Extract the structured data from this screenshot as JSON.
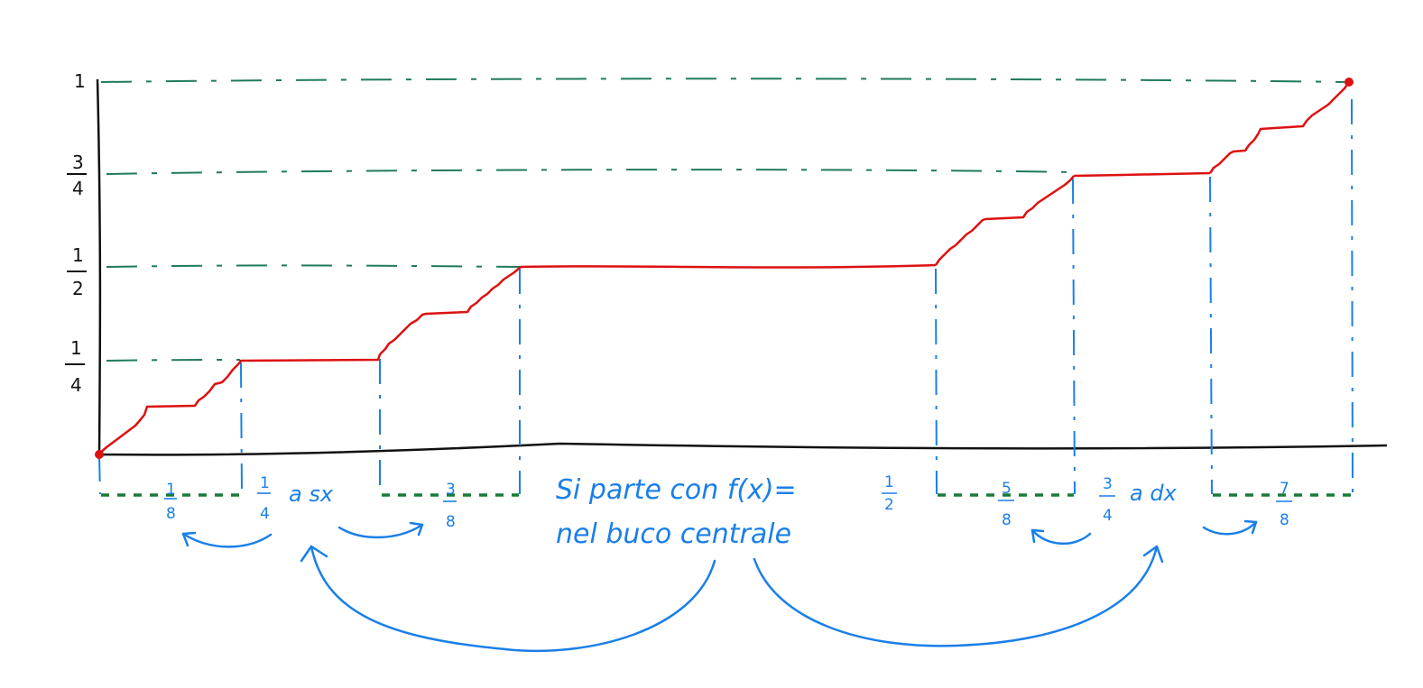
{
  "colors": {
    "axis": "#111111",
    "curve": "#dd1111",
    "guide_green": "#1f7a5c",
    "dotted_green": "#1a7a3a",
    "annotation_blue": "#1a7fe8"
  },
  "y_labels": [
    {
      "num": "1",
      "den": ""
    },
    {
      "num": "3",
      "den": "4"
    },
    {
      "num": "1",
      "den": "2"
    },
    {
      "num": "1",
      "den": "4"
    }
  ],
  "interval_labels": [
    {
      "num": "1",
      "den": "8",
      "suffix": ""
    },
    {
      "num": "1",
      "den": "4",
      "suffix": "a sx"
    },
    {
      "num": "3",
      "den": "8",
      "suffix": ""
    },
    {
      "num": "5",
      "den": "8",
      "suffix": ""
    },
    {
      "num": "3",
      "den": "4",
      "suffix": "a dx"
    },
    {
      "num": "7",
      "den": "8",
      "suffix": ""
    }
  ],
  "note": {
    "line1_prefix": "Si parte con f(x)=",
    "line1_num": "1",
    "line1_den": "2",
    "line2": "nel buco centrale"
  }
}
